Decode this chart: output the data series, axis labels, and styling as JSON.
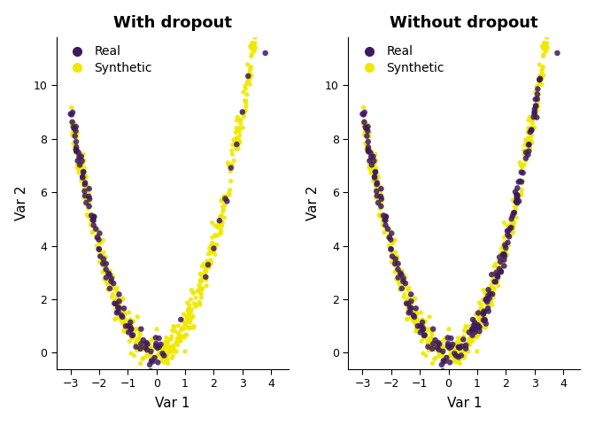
{
  "title_left": "With dropout",
  "title_right": "Without dropout",
  "xlabel": "Var 1",
  "ylabel": "Var 2",
  "real_color": "#3d1a5e",
  "synthetic_color": "#f0e800",
  "xlim": [
    -3.5,
    4.6
  ],
  "ylim": [
    -0.6,
    11.8
  ],
  "xticks": [
    -3,
    -2,
    -1,
    0,
    1,
    2,
    3,
    4
  ],
  "yticks": [
    0,
    2,
    4,
    6,
    8,
    10
  ],
  "legend_labels": [
    "Real",
    "Synthetic"
  ],
  "marker_size_real": 22,
  "marker_size_synth": 14,
  "alpha_synthetic": 0.9,
  "alpha_real": 0.85,
  "seed": 42
}
